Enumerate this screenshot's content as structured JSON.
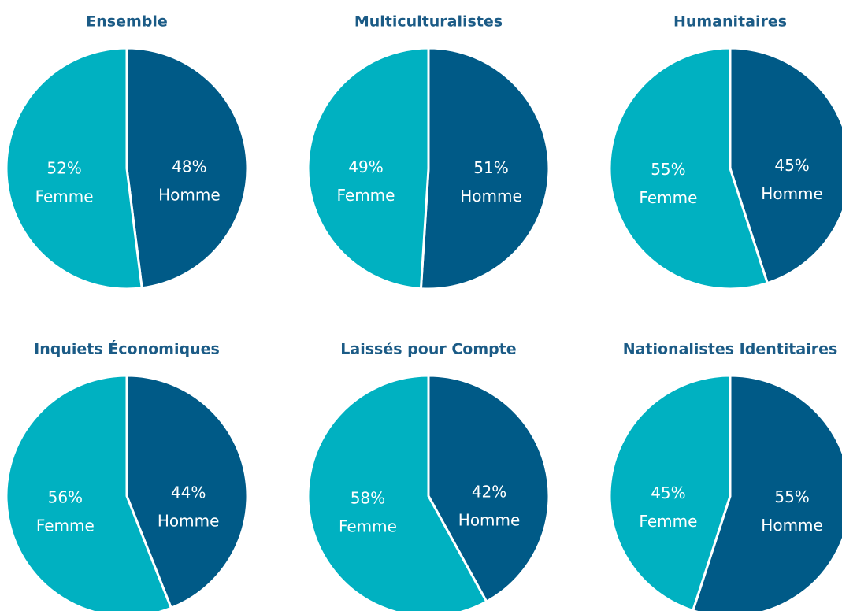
{
  "chart_data": [
    {
      "type": "pie",
      "title": "Ensemble",
      "categories": [
        "Homme",
        "Femme"
      ],
      "values": [
        48,
        52
      ],
      "value_labels": [
        "48%",
        "52%"
      ],
      "colors": [
        "#005a87",
        "#00b1c1"
      ]
    },
    {
      "type": "pie",
      "title": "Multiculturalistes",
      "categories": [
        "Homme",
        "Femme"
      ],
      "values": [
        51,
        49
      ],
      "value_labels": [
        "51%",
        "49%"
      ],
      "colors": [
        "#005a87",
        "#00b1c1"
      ]
    },
    {
      "type": "pie",
      "title": "Humanitaires",
      "categories": [
        "Homme",
        "Femme"
      ],
      "values": [
        45,
        55
      ],
      "value_labels": [
        "45%",
        "55%"
      ],
      "colors": [
        "#005a87",
        "#00b1c1"
      ]
    },
    {
      "type": "pie",
      "title": "Inquiets Économiques",
      "categories": [
        "Homme",
        "Femme"
      ],
      "values": [
        44,
        56
      ],
      "value_labels": [
        "44%",
        "56%"
      ],
      "colors": [
        "#005a87",
        "#00b1c1"
      ]
    },
    {
      "type": "pie",
      "title": "Laissés pour Compte",
      "categories": [
        "Homme",
        "Femme"
      ],
      "values": [
        42,
        58
      ],
      "value_labels": [
        "42%",
        "58%"
      ],
      "colors": [
        "#005a87",
        "#00b1c1"
      ]
    },
    {
      "type": "pie",
      "title": "Nationalistes Identitaires",
      "categories": [
        "Homme",
        "Femme"
      ],
      "values": [
        55,
        45
      ],
      "value_labels": [
        "55%",
        "45%"
      ],
      "colors": [
        "#005a87",
        "#00b1c1"
      ]
    }
  ]
}
